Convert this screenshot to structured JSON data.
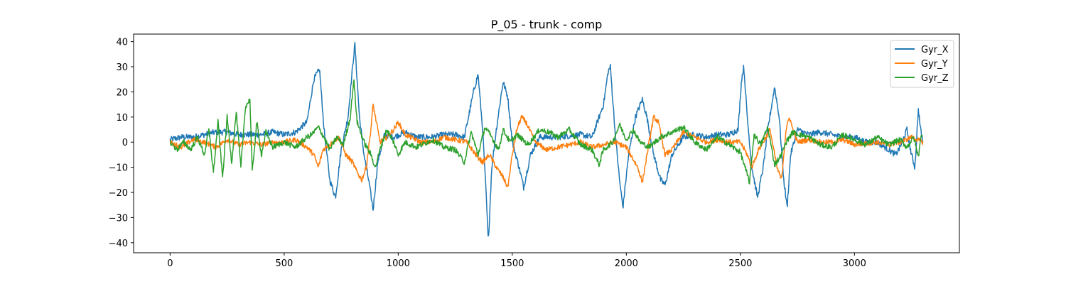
{
  "chart_data": {
    "type": "line",
    "title": "P_05 - trunk - comp",
    "xlabel": "",
    "ylabel": "",
    "xlim": [
      -160,
      3460
    ],
    "ylim": [
      -44,
      43
    ],
    "xticks": [
      0,
      500,
      1000,
      1500,
      2000,
      2500,
      3000
    ],
    "yticks": [
      -40,
      -30,
      -20,
      -10,
      0,
      10,
      20,
      30,
      40
    ],
    "grid": false,
    "legend": {
      "placement": "top-right"
    },
    "series": [
      {
        "name": "Gyr_X",
        "color": "#1f77b4",
        "keypoints": [
          [
            0,
            1
          ],
          [
            50,
            2
          ],
          [
            100,
            2
          ],
          [
            150,
            3
          ],
          [
            200,
            4
          ],
          [
            250,
            4
          ],
          [
            300,
            3
          ],
          [
            350,
            3
          ],
          [
            400,
            3
          ],
          [
            450,
            4
          ],
          [
            500,
            3
          ],
          [
            550,
            4
          ],
          [
            600,
            8
          ],
          [
            630,
            25
          ],
          [
            655,
            29
          ],
          [
            675,
            5
          ],
          [
            700,
            -15
          ],
          [
            725,
            -22
          ],
          [
            750,
            -3
          ],
          [
            780,
            10
          ],
          [
            800,
            30
          ],
          [
            810,
            39
          ],
          [
            830,
            10
          ],
          [
            850,
            -5
          ],
          [
            870,
            -15
          ],
          [
            890,
            -27
          ],
          [
            910,
            -8
          ],
          [
            940,
            3
          ],
          [
            980,
            2
          ],
          [
            1030,
            4
          ],
          [
            1080,
            2
          ],
          [
            1150,
            2
          ],
          [
            1200,
            3
          ],
          [
            1250,
            3
          ],
          [
            1290,
            2
          ],
          [
            1330,
            20
          ],
          [
            1350,
            27
          ],
          [
            1370,
            5
          ],
          [
            1385,
            -20
          ],
          [
            1395,
            -40
          ],
          [
            1410,
            -10
          ],
          [
            1430,
            5
          ],
          [
            1450,
            18
          ],
          [
            1460,
            24
          ],
          [
            1480,
            18
          ],
          [
            1500,
            0
          ],
          [
            1530,
            -10
          ],
          [
            1550,
            -18
          ],
          [
            1580,
            -5
          ],
          [
            1620,
            2
          ],
          [
            1700,
            2
          ],
          [
            1800,
            3
          ],
          [
            1850,
            2
          ],
          [
            1900,
            15
          ],
          [
            1920,
            28
          ],
          [
            1930,
            30
          ],
          [
            1950,
            5
          ],
          [
            1970,
            -15
          ],
          [
            1985,
            -26
          ],
          [
            2010,
            -5
          ],
          [
            2040,
            10
          ],
          [
            2070,
            17
          ],
          [
            2090,
            10
          ],
          [
            2120,
            -5
          ],
          [
            2150,
            -15
          ],
          [
            2170,
            -17
          ],
          [
            2200,
            -5
          ],
          [
            2250,
            2
          ],
          [
            2300,
            3
          ],
          [
            2350,
            2
          ],
          [
            2400,
            3
          ],
          [
            2450,
            3
          ],
          [
            2490,
            5
          ],
          [
            2505,
            25
          ],
          [
            2515,
            30
          ],
          [
            2530,
            10
          ],
          [
            2550,
            -10
          ],
          [
            2575,
            -22
          ],
          [
            2600,
            -10
          ],
          [
            2620,
            5
          ],
          [
            2650,
            22
          ],
          [
            2670,
            10
          ],
          [
            2690,
            -15
          ],
          [
            2705,
            -26
          ],
          [
            2720,
            -5
          ],
          [
            2750,
            5
          ],
          [
            2800,
            3
          ],
          [
            2850,
            4
          ],
          [
            2900,
            3
          ],
          [
            2950,
            2
          ],
          [
            3000,
            2
          ],
          [
            3050,
            0
          ],
          [
            3100,
            0
          ],
          [
            3150,
            -3
          ],
          [
            3180,
            -5
          ],
          [
            3200,
            -2
          ],
          [
            3230,
            5
          ],
          [
            3250,
            -5
          ],
          [
            3265,
            -10
          ],
          [
            3280,
            13
          ],
          [
            3290,
            5
          ],
          [
            3300,
            0
          ]
        ]
      },
      {
        "name": "Gyr_Y",
        "color": "#ff7f0e",
        "keypoints": [
          [
            0,
            0
          ],
          [
            50,
            -2
          ],
          [
            100,
            1
          ],
          [
            150,
            0
          ],
          [
            200,
            -2
          ],
          [
            250,
            1
          ],
          [
            300,
            -1
          ],
          [
            350,
            0
          ],
          [
            400,
            -1
          ],
          [
            450,
            0
          ],
          [
            500,
            0
          ],
          [
            550,
            1
          ],
          [
            600,
            -2
          ],
          [
            630,
            -5
          ],
          [
            650,
            -10
          ],
          [
            670,
            -3
          ],
          [
            700,
            -1
          ],
          [
            740,
            2
          ],
          [
            770,
            -5
          ],
          [
            800,
            -8
          ],
          [
            820,
            -12
          ],
          [
            840,
            -15
          ],
          [
            860,
            -10
          ],
          [
            880,
            5
          ],
          [
            890,
            15
          ],
          [
            900,
            10
          ],
          [
            920,
            0
          ],
          [
            950,
            2
          ],
          [
            980,
            5
          ],
          [
            1000,
            8
          ],
          [
            1030,
            3
          ],
          [
            1100,
            0
          ],
          [
            1150,
            0
          ],
          [
            1200,
            2
          ],
          [
            1250,
            1
          ],
          [
            1300,
            0
          ],
          [
            1340,
            -5
          ],
          [
            1370,
            -8
          ],
          [
            1400,
            -5
          ],
          [
            1430,
            -10
          ],
          [
            1460,
            -14
          ],
          [
            1480,
            -18
          ],
          [
            1500,
            -5
          ],
          [
            1520,
            5
          ],
          [
            1540,
            10
          ],
          [
            1560,
            8
          ],
          [
            1600,
            0
          ],
          [
            1650,
            -3
          ],
          [
            1700,
            -2
          ],
          [
            1800,
            0
          ],
          [
            1850,
            -2
          ],
          [
            1900,
            -1
          ],
          [
            1950,
            0
          ],
          [
            2000,
            -2
          ],
          [
            2050,
            -10
          ],
          [
            2070,
            -16
          ],
          [
            2100,
            0
          ],
          [
            2120,
            10
          ],
          [
            2140,
            8
          ],
          [
            2170,
            -5
          ],
          [
            2200,
            -3
          ],
          [
            2250,
            4
          ],
          [
            2300,
            2
          ],
          [
            2350,
            0
          ],
          [
            2400,
            1
          ],
          [
            2450,
            0
          ],
          [
            2500,
            0
          ],
          [
            2530,
            -5
          ],
          [
            2550,
            -10
          ],
          [
            2580,
            -3
          ],
          [
            2600,
            0
          ],
          [
            2630,
            5
          ],
          [
            2660,
            -10
          ],
          [
            2680,
            -15
          ],
          [
            2700,
            5
          ],
          [
            2715,
            10
          ],
          [
            2730,
            5
          ],
          [
            2750,
            0
          ],
          [
            2800,
            1
          ],
          [
            2850,
            0
          ],
          [
            2900,
            0
          ],
          [
            2950,
            1
          ],
          [
            3000,
            -1
          ],
          [
            3100,
            0
          ],
          [
            3150,
            -1
          ],
          [
            3200,
            0
          ],
          [
            3250,
            2
          ],
          [
            3300,
            0
          ]
        ]
      },
      {
        "name": "Gyr_Z",
        "color": "#2ca02c",
        "keypoints": [
          [
            0,
            0
          ],
          [
            30,
            -3
          ],
          [
            60,
            0
          ],
          [
            90,
            -3
          ],
          [
            120,
            2
          ],
          [
            150,
            -5
          ],
          [
            170,
            5
          ],
          [
            190,
            -12
          ],
          [
            210,
            8
          ],
          [
            230,
            -14
          ],
          [
            250,
            10
          ],
          [
            270,
            -8
          ],
          [
            290,
            12
          ],
          [
            310,
            -10
          ],
          [
            330,
            14
          ],
          [
            350,
            17
          ],
          [
            360,
            -12
          ],
          [
            380,
            8
          ],
          [
            400,
            -5
          ],
          [
            420,
            4
          ],
          [
            450,
            -2
          ],
          [
            500,
            0
          ],
          [
            550,
            -2
          ],
          [
            600,
            2
          ],
          [
            620,
            3
          ],
          [
            650,
            6
          ],
          [
            680,
            1
          ],
          [
            700,
            -3
          ],
          [
            730,
            2
          ],
          [
            760,
            -1
          ],
          [
            790,
            10
          ],
          [
            805,
            25
          ],
          [
            820,
            8
          ],
          [
            850,
            0
          ],
          [
            880,
            -5
          ],
          [
            900,
            -10
          ],
          [
            920,
            -3
          ],
          [
            950,
            5
          ],
          [
            980,
            0
          ],
          [
            1000,
            -5
          ],
          [
            1030,
            0
          ],
          [
            1080,
            -2
          ],
          [
            1150,
            1
          ],
          [
            1200,
            -2
          ],
          [
            1250,
            -3
          ],
          [
            1290,
            -8
          ],
          [
            1320,
            4
          ],
          [
            1350,
            -5
          ],
          [
            1380,
            6
          ],
          [
            1410,
            2
          ],
          [
            1440,
            -3
          ],
          [
            1460,
            5
          ],
          [
            1490,
            0
          ],
          [
            1520,
            3
          ],
          [
            1570,
            -1
          ],
          [
            1620,
            5
          ],
          [
            1660,
            4
          ],
          [
            1700,
            2
          ],
          [
            1750,
            5
          ],
          [
            1800,
            -1
          ],
          [
            1850,
            -3
          ],
          [
            1880,
            -9
          ],
          [
            1900,
            -3
          ],
          [
            1940,
            0
          ],
          [
            1970,
            7
          ],
          [
            2000,
            1
          ],
          [
            2030,
            5
          ],
          [
            2060,
            0
          ],
          [
            2100,
            -2
          ],
          [
            2150,
            2
          ],
          [
            2200,
            4
          ],
          [
            2250,
            6
          ],
          [
            2300,
            0
          ],
          [
            2350,
            -3
          ],
          [
            2400,
            2
          ],
          [
            2450,
            -1
          ],
          [
            2500,
            -4
          ],
          [
            2520,
            -10
          ],
          [
            2540,
            -16
          ],
          [
            2560,
            3
          ],
          [
            2590,
            -1
          ],
          [
            2620,
            6
          ],
          [
            2650,
            -9
          ],
          [
            2680,
            -5
          ],
          [
            2700,
            0
          ],
          [
            2730,
            4
          ],
          [
            2760,
            3
          ],
          [
            2800,
            2
          ],
          [
            2850,
            -1
          ],
          [
            2900,
            -2
          ],
          [
            2950,
            3
          ],
          [
            3000,
            1
          ],
          [
            3050,
            -1
          ],
          [
            3100,
            2
          ],
          [
            3150,
            -1
          ],
          [
            3200,
            1
          ],
          [
            3230,
            -2
          ],
          [
            3260,
            2
          ],
          [
            3280,
            -6
          ],
          [
            3290,
            2
          ],
          [
            3300,
            2
          ]
        ]
      }
    ]
  }
}
